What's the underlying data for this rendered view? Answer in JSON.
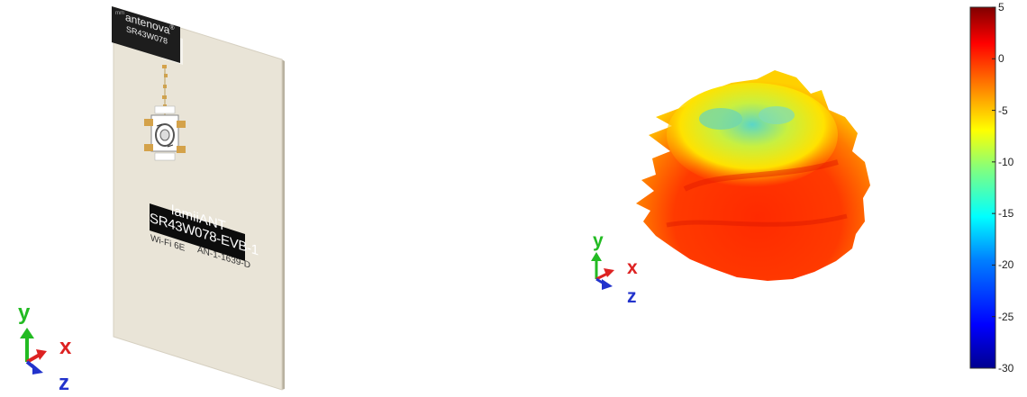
{
  "board": {
    "chip_brand": "antenova",
    "chip_trademark": "®",
    "chip_part": "SR43W078",
    "plate_line1": "lamiiANT",
    "plate_line2": "SR43W078-EVB-1",
    "silk_left": "Wi-Fi 6E",
    "silk_right": "AN-1-1639-D",
    "corner_mark": "mm"
  },
  "triads": [
    {
      "y": "y",
      "x": "x",
      "z": "z"
    },
    {
      "y": "y",
      "x": "x",
      "z": "z"
    }
  ],
  "colorbar": {
    "ticks": [
      "5",
      "0",
      "-5",
      "-10",
      "-15",
      "-20",
      "-25",
      "-30"
    ],
    "min": -30,
    "max": 5,
    "colors": [
      "#00008f",
      "#0000ff",
      "#0080ff",
      "#00ffff",
      "#80ff80",
      "#ffff00",
      "#ff8000",
      "#ff0000",
      "#800000"
    ]
  },
  "colors": {
    "board": "#e9e4d7",
    "board_edge": "#c9c2b0",
    "axis_y": "#22bb22",
    "axis_x": "#dd2222",
    "axis_z": "#2233cc"
  }
}
